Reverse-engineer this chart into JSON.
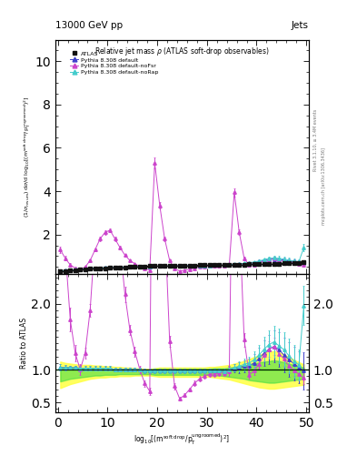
{
  "title_left": "13000 GeV pp",
  "title_right": "Jets",
  "plot_title": "Relative jet mass ρ (ATLAS soft-drop observables)",
  "right_label1": "Rivet 3.1.10, ≥ 3.4M events",
  "right_label2": "mcplots.cern.ch [arXiv:1306.3436]",
  "xlim": [
    -0.5,
    50.5
  ],
  "ylim_main": [
    0.18,
    11.0
  ],
  "ylim_ratio": [
    0.35,
    2.45
  ],
  "main_yticks": [
    2,
    4,
    6,
    8,
    10
  ],
  "ratio_yticks": [
    0.5,
    1.0,
    2.0
  ],
  "atlas_color": "#111111",
  "default_color": "#4040cc",
  "nofsr_color": "#cc44cc",
  "norap_color": "#44cccc",
  "band_yellow": "#ffff44",
  "band_green": "#44dd44",
  "n_points": 50,
  "x": [
    0.5,
    1.5,
    2.5,
    3.5,
    4.5,
    5.5,
    6.5,
    7.5,
    8.5,
    9.5,
    10.5,
    11.5,
    12.5,
    13.5,
    14.5,
    15.5,
    16.5,
    17.5,
    18.5,
    19.5,
    20.5,
    21.5,
    22.5,
    23.5,
    24.5,
    25.5,
    26.5,
    27.5,
    28.5,
    29.5,
    30.5,
    31.5,
    32.5,
    33.5,
    34.5,
    35.5,
    36.5,
    37.5,
    38.5,
    39.5,
    40.5,
    41.5,
    42.5,
    43.5,
    44.5,
    45.5,
    46.5,
    47.5,
    48.5,
    49.5
  ],
  "atlas_y": [
    0.3,
    0.32,
    0.34,
    0.36,
    0.38,
    0.4,
    0.42,
    0.43,
    0.44,
    0.45,
    0.46,
    0.47,
    0.48,
    0.49,
    0.5,
    0.51,
    0.52,
    0.53,
    0.54,
    0.55,
    0.55,
    0.55,
    0.56,
    0.56,
    0.57,
    0.57,
    0.57,
    0.57,
    0.58,
    0.58,
    0.58,
    0.59,
    0.59,
    0.6,
    0.6,
    0.61,
    0.62,
    0.62,
    0.63,
    0.63,
    0.64,
    0.64,
    0.65,
    0.65,
    0.66,
    0.67,
    0.68,
    0.69,
    0.7,
    0.71
  ],
  "atlas_yerr": [
    0.02,
    0.02,
    0.015,
    0.015,
    0.015,
    0.015,
    0.012,
    0.012,
    0.012,
    0.012,
    0.012,
    0.012,
    0.012,
    0.012,
    0.012,
    0.012,
    0.012,
    0.012,
    0.012,
    0.012,
    0.012,
    0.012,
    0.012,
    0.012,
    0.012,
    0.012,
    0.012,
    0.012,
    0.012,
    0.012,
    0.012,
    0.012,
    0.012,
    0.012,
    0.012,
    0.012,
    0.012,
    0.012,
    0.015,
    0.015,
    0.015,
    0.015,
    0.015,
    0.015,
    0.02,
    0.02,
    0.02,
    0.02,
    0.02,
    0.03
  ],
  "default_y": [
    0.31,
    0.33,
    0.35,
    0.37,
    0.39,
    0.41,
    0.43,
    0.44,
    0.45,
    0.46,
    0.47,
    0.47,
    0.48,
    0.49,
    0.5,
    0.51,
    0.52,
    0.52,
    0.53,
    0.54,
    0.54,
    0.54,
    0.55,
    0.55,
    0.56,
    0.56,
    0.56,
    0.56,
    0.57,
    0.57,
    0.57,
    0.58,
    0.58,
    0.58,
    0.6,
    0.62,
    0.64,
    0.65,
    0.67,
    0.7,
    0.75,
    0.8,
    0.85,
    0.87,
    0.85,
    0.82,
    0.78,
    0.75,
    0.72,
    0.7
  ],
  "default_yerr": [
    0.02,
    0.015,
    0.012,
    0.01,
    0.01,
    0.01,
    0.01,
    0.01,
    0.01,
    0.01,
    0.01,
    0.01,
    0.01,
    0.01,
    0.01,
    0.01,
    0.01,
    0.01,
    0.01,
    0.01,
    0.01,
    0.01,
    0.01,
    0.01,
    0.01,
    0.01,
    0.01,
    0.01,
    0.01,
    0.01,
    0.01,
    0.01,
    0.012,
    0.015,
    0.02,
    0.025,
    0.03,
    0.035,
    0.04,
    0.05,
    0.06,
    0.07,
    0.08,
    0.09,
    0.1,
    0.1,
    0.1,
    0.1,
    0.1,
    0.12
  ],
  "nofsr_y": [
    1.3,
    0.9,
    0.6,
    0.45,
    0.38,
    0.5,
    0.8,
    1.3,
    1.8,
    2.1,
    2.2,
    1.8,
    1.4,
    1.05,
    0.8,
    0.65,
    0.52,
    0.42,
    0.36,
    5.3,
    3.35,
    1.8,
    0.8,
    0.42,
    0.32,
    0.35,
    0.4,
    0.45,
    0.5,
    0.52,
    0.54,
    0.55,
    0.56,
    0.57,
    0.58,
    3.95,
    2.1,
    0.9,
    0.58,
    0.62,
    0.7,
    0.78,
    0.85,
    0.88,
    0.82,
    0.78,
    0.72,
    0.68,
    0.65,
    0.62
  ],
  "nofsr_yerr": [
    0.15,
    0.1,
    0.08,
    0.05,
    0.04,
    0.04,
    0.05,
    0.07,
    0.09,
    0.1,
    0.1,
    0.09,
    0.08,
    0.06,
    0.05,
    0.04,
    0.03,
    0.03,
    0.03,
    0.25,
    0.15,
    0.1,
    0.05,
    0.03,
    0.02,
    0.02,
    0.02,
    0.02,
    0.02,
    0.02,
    0.02,
    0.02,
    0.02,
    0.03,
    0.04,
    0.2,
    0.12,
    0.06,
    0.04,
    0.04,
    0.05,
    0.06,
    0.07,
    0.08,
    0.08,
    0.07,
    0.06,
    0.06,
    0.05,
    0.06
  ],
  "norap_y": [
    0.31,
    0.33,
    0.35,
    0.37,
    0.39,
    0.41,
    0.43,
    0.44,
    0.45,
    0.46,
    0.47,
    0.47,
    0.48,
    0.49,
    0.5,
    0.51,
    0.52,
    0.52,
    0.53,
    0.54,
    0.54,
    0.54,
    0.55,
    0.55,
    0.56,
    0.56,
    0.56,
    0.56,
    0.57,
    0.57,
    0.57,
    0.58,
    0.58,
    0.58,
    0.6,
    0.63,
    0.65,
    0.67,
    0.7,
    0.73,
    0.78,
    0.84,
    0.9,
    0.92,
    0.9,
    0.87,
    0.82,
    0.78,
    0.75,
    1.4
  ],
  "norap_yerr": [
    0.02,
    0.015,
    0.012,
    0.01,
    0.01,
    0.01,
    0.01,
    0.01,
    0.01,
    0.01,
    0.01,
    0.01,
    0.01,
    0.01,
    0.01,
    0.01,
    0.01,
    0.01,
    0.01,
    0.01,
    0.01,
    0.01,
    0.01,
    0.01,
    0.01,
    0.01,
    0.01,
    0.01,
    0.01,
    0.01,
    0.01,
    0.01,
    0.012,
    0.015,
    0.02,
    0.025,
    0.03,
    0.035,
    0.04,
    0.05,
    0.06,
    0.07,
    0.08,
    0.09,
    0.1,
    0.1,
    0.1,
    0.1,
    0.1,
    0.15
  ],
  "ratio_default_y": [
    1.03,
    1.03,
    1.03,
    1.03,
    1.02,
    1.02,
    1.02,
    1.02,
    1.02,
    1.02,
    1.02,
    1.0,
    1.0,
    1.0,
    1.0,
    1.0,
    1.0,
    0.98,
    0.98,
    0.98,
    0.98,
    0.98,
    0.98,
    0.98,
    0.98,
    0.98,
    0.98,
    0.98,
    0.98,
    0.98,
    0.98,
    0.98,
    0.98,
    0.97,
    1.0,
    1.02,
    1.03,
    1.05,
    1.06,
    1.1,
    1.17,
    1.25,
    1.31,
    1.35,
    1.3,
    1.22,
    1.15,
    1.09,
    1.03,
    0.98
  ],
  "ratio_default_yerr": [
    0.05,
    0.04,
    0.03,
    0.03,
    0.03,
    0.03,
    0.03,
    0.03,
    0.03,
    0.03,
    0.03,
    0.03,
    0.03,
    0.03,
    0.03,
    0.03,
    0.03,
    0.03,
    0.03,
    0.03,
    0.03,
    0.03,
    0.03,
    0.03,
    0.03,
    0.03,
    0.03,
    0.03,
    0.03,
    0.03,
    0.03,
    0.03,
    0.03,
    0.04,
    0.05,
    0.06,
    0.08,
    0.09,
    0.1,
    0.13,
    0.16,
    0.19,
    0.22,
    0.24,
    0.26,
    0.26,
    0.26,
    0.25,
    0.24,
    0.28
  ],
  "ratio_nofsr_y": [
    4.33,
    2.81,
    1.76,
    1.25,
    1.0,
    1.25,
    1.9,
    3.02,
    4.09,
    4.67,
    4.78,
    3.83,
    2.92,
    2.14,
    1.6,
    1.27,
    1.0,
    0.79,
    0.67,
    9.64,
    6.09,
    3.27,
    1.43,
    0.75,
    0.56,
    0.61,
    0.7,
    0.79,
    0.86,
    0.9,
    0.93,
    0.93,
    0.95,
    0.95,
    0.97,
    6.48,
    3.39,
    1.45,
    0.92,
    0.98,
    1.09,
    1.22,
    1.31,
    1.35,
    1.24,
    1.16,
    1.06,
    0.99,
    0.93,
    0.87
  ],
  "ratio_nofsr_yerr": [
    0.4,
    0.25,
    0.18,
    0.12,
    0.08,
    0.08,
    0.1,
    0.15,
    0.18,
    0.2,
    0.2,
    0.18,
    0.15,
    0.12,
    0.08,
    0.07,
    0.05,
    0.05,
    0.05,
    0.45,
    0.28,
    0.18,
    0.08,
    0.05,
    0.03,
    0.03,
    0.03,
    0.04,
    0.04,
    0.04,
    0.04,
    0.04,
    0.04,
    0.05,
    0.07,
    0.32,
    0.2,
    0.1,
    0.06,
    0.06,
    0.08,
    0.1,
    0.12,
    0.13,
    0.13,
    0.11,
    0.1,
    0.09,
    0.08,
    0.09
  ],
  "ratio_norap_y": [
    1.03,
    1.03,
    1.03,
    1.03,
    1.02,
    1.02,
    1.02,
    1.02,
    1.02,
    1.02,
    1.02,
    1.0,
    1.0,
    1.0,
    1.0,
    1.0,
    1.0,
    0.98,
    0.98,
    0.98,
    0.98,
    0.98,
    0.98,
    0.98,
    0.98,
    0.98,
    0.98,
    0.98,
    0.98,
    0.98,
    0.98,
    0.98,
    0.98,
    0.97,
    1.0,
    1.03,
    1.05,
    1.08,
    1.1,
    1.15,
    1.22,
    1.31,
    1.38,
    1.42,
    1.36,
    1.3,
    1.21,
    1.13,
    1.07,
    1.97
  ],
  "ratio_norap_yerr": [
    0.05,
    0.04,
    0.03,
    0.03,
    0.03,
    0.03,
    0.03,
    0.03,
    0.03,
    0.03,
    0.03,
    0.03,
    0.03,
    0.03,
    0.03,
    0.03,
    0.03,
    0.03,
    0.03,
    0.03,
    0.03,
    0.03,
    0.03,
    0.03,
    0.03,
    0.03,
    0.03,
    0.03,
    0.03,
    0.03,
    0.03,
    0.03,
    0.03,
    0.04,
    0.05,
    0.06,
    0.08,
    0.09,
    0.1,
    0.13,
    0.16,
    0.19,
    0.22,
    0.24,
    0.26,
    0.26,
    0.26,
    0.25,
    0.24,
    0.3
  ],
  "band_x": [
    0.5,
    1.5,
    2.5,
    3.5,
    4.5,
    5.5,
    6.5,
    7.5,
    8.5,
    9.5,
    10.5,
    11.5,
    12.5,
    13.5,
    14.5,
    15.5,
    16.5,
    17.5,
    18.5,
    19.5,
    20.5,
    21.5,
    22.5,
    23.5,
    24.5,
    25.5,
    26.5,
    27.5,
    28.5,
    29.5,
    30.5,
    31.5,
    32.5,
    33.5,
    34.5,
    35.5,
    36.5,
    37.5,
    38.5,
    39.5,
    40.5,
    41.5,
    42.5,
    43.5,
    44.5,
    45.5,
    46.5,
    47.5,
    48.5,
    49.5
  ],
  "band_ylo": [
    0.72,
    0.75,
    0.78,
    0.8,
    0.82,
    0.84,
    0.86,
    0.87,
    0.88,
    0.88,
    0.89,
    0.89,
    0.9,
    0.9,
    0.9,
    0.91,
    0.91,
    0.91,
    0.91,
    0.9,
    0.89,
    0.89,
    0.89,
    0.89,
    0.89,
    0.89,
    0.89,
    0.89,
    0.89,
    0.89,
    0.89,
    0.88,
    0.87,
    0.86,
    0.85,
    0.83,
    0.81,
    0.79,
    0.77,
    0.75,
    0.73,
    0.72,
    0.71,
    0.71,
    0.72,
    0.73,
    0.74,
    0.75,
    0.76,
    0.77
  ],
  "band_yhi": [
    1.12,
    1.1,
    1.09,
    1.08,
    1.07,
    1.07,
    1.07,
    1.06,
    1.06,
    1.05,
    1.05,
    1.04,
    1.04,
    1.03,
    1.03,
    1.02,
    1.02,
    1.01,
    1.01,
    1.02,
    1.03,
    1.03,
    1.03,
    1.03,
    1.03,
    1.03,
    1.03,
    1.03,
    1.03,
    1.03,
    1.04,
    1.04,
    1.05,
    1.06,
    1.07,
    1.09,
    1.11,
    1.13,
    1.16,
    1.19,
    1.22,
    1.25,
    1.27,
    1.28,
    1.26,
    1.23,
    1.19,
    1.15,
    1.11,
    1.08
  ],
  "band_glo": [
    0.82,
    0.84,
    0.86,
    0.87,
    0.88,
    0.89,
    0.9,
    0.91,
    0.91,
    0.92,
    0.92,
    0.92,
    0.93,
    0.93,
    0.93,
    0.93,
    0.93,
    0.93,
    0.93,
    0.92,
    0.92,
    0.92,
    0.92,
    0.92,
    0.92,
    0.92,
    0.92,
    0.92,
    0.92,
    0.92,
    0.92,
    0.91,
    0.91,
    0.9,
    0.89,
    0.88,
    0.87,
    0.86,
    0.84,
    0.83,
    0.82,
    0.81,
    0.8,
    0.8,
    0.81,
    0.82,
    0.83,
    0.84,
    0.85,
    0.86
  ],
  "band_ghi": [
    1.04,
    1.03,
    1.03,
    1.02,
    1.02,
    1.02,
    1.02,
    1.01,
    1.01,
    1.01,
    1.01,
    1.01,
    1.01,
    1.01,
    1.01,
    1.0,
    1.0,
    1.0,
    1.0,
    1.01,
    1.01,
    1.01,
    1.01,
    1.01,
    1.01,
    1.01,
    1.01,
    1.01,
    1.01,
    1.01,
    1.01,
    1.02,
    1.02,
    1.02,
    1.03,
    1.04,
    1.05,
    1.06,
    1.07,
    1.09,
    1.11,
    1.12,
    1.13,
    1.14,
    1.13,
    1.11,
    1.09,
    1.07,
    1.05,
    1.03
  ]
}
